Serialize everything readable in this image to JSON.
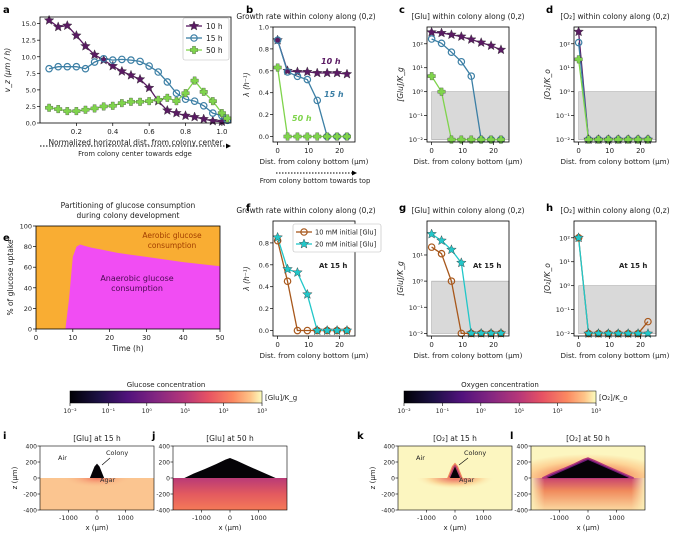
{
  "panel_labels": [
    "a",
    "b",
    "c",
    "d",
    "e",
    "f",
    "g",
    "h",
    "i",
    "j",
    "k",
    "l"
  ],
  "colors": {
    "h10": "#5a1a63",
    "h15": "#3c7fa5",
    "h50": "#7fd44c",
    "mm10": "#a8581c",
    "mm20": "#22c7c9",
    "shade": "#d9d9d9",
    "anaerobic": "#f14df3",
    "aerobic": "#f9ad33"
  },
  "chart_data": [
    {
      "id": "a",
      "type": "line",
      "xlabel": "Normalized horizontal dist. from colony center",
      "ylabel": "v_z (μm / h)",
      "arrow_caption": "From colony center towards edge",
      "xlim": [
        0,
        1.05
      ],
      "ylim": [
        0,
        16
      ],
      "xticks": [
        "0.2",
        "0.4",
        "0.6",
        "0.8",
        "1.0"
      ],
      "yticks": [
        "0.0",
        "2.5",
        "5.0",
        "7.5",
        "10.0",
        "12.5",
        "15.0"
      ],
      "legend": [
        "10 h",
        "15 h",
        "50 h"
      ],
      "legend_position": "top-right",
      "series": [
        {
          "name": "10 h",
          "color": "h10",
          "marker": "star",
          "x": [
            0.05,
            0.1,
            0.15,
            0.2,
            0.25,
            0.3,
            0.35,
            0.4,
            0.45,
            0.5,
            0.55,
            0.6,
            0.65,
            0.7,
            0.75,
            0.8,
            0.85,
            0.9,
            0.95,
            1.0
          ],
          "y": [
            15.5,
            14.5,
            14.7,
            13.2,
            11.6,
            10.3,
            9.5,
            8.6,
            7.8,
            7.2,
            6.6,
            5.3,
            3.3,
            1.9,
            1.5,
            1.1,
            0.9,
            0.6,
            0.3,
            0.2
          ]
        },
        {
          "name": "15 h",
          "color": "h15",
          "marker": "circle",
          "x": [
            0.05,
            0.1,
            0.15,
            0.2,
            0.25,
            0.3,
            0.35,
            0.4,
            0.45,
            0.5,
            0.55,
            0.6,
            0.65,
            0.7,
            0.75,
            0.8,
            0.85,
            0.9,
            0.95,
            1.0,
            1.03
          ],
          "y": [
            8.2,
            8.5,
            8.5,
            8.5,
            8.2,
            9.2,
            9.7,
            9.5,
            9.6,
            9.5,
            9.3,
            8.6,
            7.7,
            6.2,
            4.5,
            3.6,
            3.3,
            2.6,
            1.5,
            1.1,
            0.4
          ]
        },
        {
          "name": "50 h",
          "color": "h50",
          "marker": "plus",
          "x": [
            0.05,
            0.1,
            0.15,
            0.2,
            0.25,
            0.3,
            0.35,
            0.4,
            0.45,
            0.5,
            0.55,
            0.6,
            0.65,
            0.7,
            0.75,
            0.8,
            0.85,
            0.9,
            0.95,
            1.0,
            1.03
          ],
          "y": [
            2.3,
            2.1,
            1.8,
            1.8,
            2.0,
            2.2,
            2.5,
            2.6,
            3.0,
            3.2,
            3.2,
            3.3,
            3.5,
            3.8,
            3.3,
            4.5,
            6.4,
            4.7,
            3.3,
            1.5,
            0.7
          ]
        }
      ]
    },
    {
      "id": "b",
      "type": "line",
      "title": "Growth rate within colony along (0,z)",
      "xlabel": "Dist. from colony bottom (μm)",
      "ylabel": "λ (h⁻¹)",
      "arrow_caption": "From colony bottom towards top",
      "xlim": [
        -1.5,
        25
      ],
      "ylim": [
        -0.05,
        1.0
      ],
      "xticks": [
        "0",
        "10",
        "20"
      ],
      "yticks": [
        "0.0",
        "0.2",
        "0.4",
        "0.6",
        "0.8",
        "1.0"
      ],
      "annotations": [
        "10 h",
        "15 h",
        "50 h"
      ],
      "series": [
        {
          "name": "10 h",
          "color": "h10",
          "marker": "star",
          "x": [
            0,
            3.2,
            6.4,
            9.6,
            12.8,
            16,
            19.2,
            22.4
          ],
          "y": [
            0.88,
            0.6,
            0.59,
            0.59,
            0.58,
            0.58,
            0.58,
            0.57
          ]
        },
        {
          "name": "15 h",
          "color": "h15",
          "marker": "circle",
          "x": [
            0,
            3.2,
            6.4,
            9.6,
            12.8,
            16,
            19.2,
            22.4
          ],
          "y": [
            0.88,
            0.59,
            0.55,
            0.52,
            0.33,
            0.0,
            0.0,
            0.0
          ]
        },
        {
          "name": "50 h",
          "color": "h50",
          "marker": "plus",
          "x": [
            0,
            3.2,
            6.4,
            9.6,
            12.8,
            16,
            19.2,
            22.4
          ],
          "y": [
            0.63,
            0.0,
            0.0,
            0.0,
            0.0,
            0.0,
            0.0,
            0.0
          ]
        }
      ]
    },
    {
      "id": "c",
      "type": "line",
      "scale": "log",
      "title": "[Glu] within colony along (0,z)",
      "xlabel": "Dist. from colony bottom (μm)",
      "ylabel": "[Glu]/K_g",
      "xlim": [
        -1.5,
        25
      ],
      "ylim": [
        -2.1,
        2.7
      ],
      "xticks": [
        "0",
        "10",
        "20"
      ],
      "yticks": [
        "10⁻²",
        "10⁻¹",
        "10⁰",
        "10¹",
        "10²"
      ],
      "shade": {
        "x": [
          0,
          25
        ],
        "y": [
          -2,
          0
        ]
      },
      "series": [
        {
          "name": "10 h",
          "color": "h10",
          "marker": "star",
          "x": [
            0,
            3.2,
            6.4,
            9.6,
            12.8,
            16,
            19.2,
            22.4
          ],
          "y": [
            2.48,
            2.45,
            2.38,
            2.3,
            2.18,
            2.05,
            1.92,
            1.75
          ]
        },
        {
          "name": "15 h",
          "color": "h15",
          "marker": "circle",
          "x": [
            0,
            3.2,
            6.4,
            9.6,
            12.8,
            16,
            19.2,
            22.4
          ],
          "y": [
            2.2,
            2.02,
            1.65,
            1.25,
            0.65,
            -2.0,
            -2.0,
            -2.0
          ]
        },
        {
          "name": "50 h",
          "color": "h50",
          "marker": "plus",
          "x": [
            0,
            3.2,
            6.4,
            9.6,
            12.8,
            16,
            19.2,
            22.4
          ],
          "y": [
            0.65,
            0.0,
            -2.0,
            -2.0,
            -2.0,
            -2.0,
            -2.0,
            -2.0
          ]
        }
      ]
    },
    {
      "id": "d",
      "type": "line",
      "scale": "log",
      "title": "[O₂] within colony along (0,z)",
      "xlabel": "Dist. from colony bottom (μm)",
      "ylabel": "[O₂]/K_o",
      "xlim": [
        -1.5,
        25
      ],
      "ylim": [
        -2.1,
        2.7
      ],
      "xticks": [
        "0",
        "10",
        "20"
      ],
      "yticks": [
        "10⁻²",
        "10⁻¹",
        "10⁰",
        "10¹",
        "10²"
      ],
      "shade": {
        "x": [
          0,
          25
        ],
        "y": [
          -2,
          0
        ]
      },
      "series": [
        {
          "name": "10 h",
          "color": "h10",
          "marker": "star",
          "x": [
            0,
            3.2,
            6.4,
            9.6,
            12.8,
            16,
            19.2,
            22.4
          ],
          "y": [
            2.5,
            -2.0,
            -2.0,
            -2.0,
            -2.0,
            -2.0,
            -2.0,
            -2.0
          ]
        },
        {
          "name": "15 h",
          "color": "h15",
          "marker": "circle",
          "x": [
            0,
            3.2,
            6.4,
            9.6,
            12.8,
            16,
            19.2,
            22.4
          ],
          "y": [
            2.05,
            -2.0,
            -2.0,
            -2.0,
            -2.0,
            -2.0,
            -2.0,
            -2.0
          ]
        },
        {
          "name": "50 h",
          "color": "h50",
          "marker": "plus",
          "x": [
            0,
            3.2,
            6.4,
            9.6,
            12.8,
            16,
            19.2,
            22.4
          ],
          "y": [
            1.35,
            -2.0,
            -2.0,
            -2.0,
            -2.0,
            -2.0,
            -2.0,
            -2.0
          ]
        }
      ]
    },
    {
      "id": "e",
      "type": "area",
      "title": "Partitioning of glucose consumption during colony development",
      "xlabel": "Time (h)",
      "ylabel": "% of glucose uptake",
      "xlim": [
        0,
        50
      ],
      "ylim": [
        0,
        100
      ],
      "xticks": [
        "0",
        "10",
        "20",
        "30",
        "40",
        "50"
      ],
      "yticks": [
        "0",
        "20",
        "40",
        "60",
        "80",
        "100"
      ],
      "region_labels": [
        "Aerobic glucose consumption",
        "Anaerobic glucose consumption"
      ],
      "anaerobic_fraction": {
        "x": [
          8,
          9,
          10,
          11,
          12,
          13,
          15,
          18,
          22,
          30,
          40,
          50
        ],
        "y": [
          0,
          30,
          70,
          80,
          82,
          81,
          79,
          77,
          74,
          70,
          65,
          61
        ]
      }
    },
    {
      "id": "f",
      "type": "line",
      "title": "Growth rate within colony along (0,z)",
      "xlabel": "Dist. from colony bottom (μm)",
      "ylabel": "λ (h⁻¹)",
      "xlim": [
        -1.5,
        25
      ],
      "ylim": [
        -0.05,
        1.0
      ],
      "xticks": [
        "0",
        "10",
        "20"
      ],
      "yticks": [
        "0.0",
        "0.2",
        "0.4",
        "0.6",
        "0.8"
      ],
      "legend": [
        "10 mM initial [Glu]",
        "20 mM initial [Glu]"
      ],
      "legend_position": "top-right",
      "annotation": "At 15 h",
      "series": [
        {
          "name": "10 mM initial [Glu]",
          "color": "mm10",
          "marker": "circle",
          "x": [
            0,
            3.2,
            6.4,
            9.6,
            12.8,
            16,
            19.2,
            22.4
          ],
          "y": [
            0.82,
            0.45,
            0.0,
            0.0,
            0.0,
            0.0,
            0.0,
            0.0
          ]
        },
        {
          "name": "20 mM initial [Glu]",
          "color": "mm20",
          "marker": "star",
          "x": [
            0,
            3.2,
            6.4,
            9.6,
            12.8,
            16,
            19.2,
            22.4
          ],
          "y": [
            0.85,
            0.56,
            0.53,
            0.33,
            0.0,
            0.0,
            0.0,
            0.0
          ]
        }
      ]
    },
    {
      "id": "g",
      "type": "line",
      "scale": "log",
      "title": "[Glu] within colony along (0,z)",
      "xlabel": "Dist. from colony bottom (μm)",
      "ylabel": "[Glu]/K_g",
      "xlim": [
        -1.5,
        25
      ],
      "ylim": [
        -2.1,
        2.3
      ],
      "xticks": [
        "0",
        "10",
        "20"
      ],
      "yticks": [
        "10⁻²",
        "10⁻¹",
        "10⁰",
        "10¹"
      ],
      "shade": {
        "x": [
          0,
          25
        ],
        "y": [
          -2,
          0
        ]
      },
      "annotation": "At 15 h",
      "series": [
        {
          "name": "10 mM initial [Glu]",
          "color": "mm10",
          "marker": "circle",
          "x": [
            0,
            3.2,
            6.4,
            9.6,
            12.8,
            16,
            19.2,
            22.4
          ],
          "y": [
            1.3,
            1.05,
            0.0,
            -2.0,
            -2.0,
            -2.0,
            -2.0,
            -2.0
          ]
        },
        {
          "name": "20 mM initial [Glu]",
          "color": "mm20",
          "marker": "star",
          "x": [
            0,
            3.2,
            6.4,
            9.6,
            12.8,
            16,
            19.2,
            22.4
          ],
          "y": [
            1.8,
            1.55,
            1.2,
            0.7,
            -2.0,
            -2.0,
            -2.0,
            -2.0
          ]
        }
      ]
    },
    {
      "id": "h",
      "type": "line",
      "scale": "log",
      "title": "[O₂] within colony along (0,z)",
      "xlabel": "Dist. from colony bottom (μm)",
      "ylabel": "[O₂]/K_o",
      "xlim": [
        -1.5,
        25
      ],
      "ylim": [
        -2.1,
        2.7
      ],
      "xticks": [
        "0",
        "10",
        "20"
      ],
      "yticks": [
        "10⁻²",
        "10⁻¹",
        "10⁰",
        "10¹",
        "10²"
      ],
      "shade": {
        "x": [
          0,
          25
        ],
        "y": [
          -2,
          0
        ]
      },
      "annotation": "At 15 h",
      "series": [
        {
          "name": "10 mM initial [Glu]",
          "color": "mm10",
          "marker": "circle",
          "x": [
            0,
            3.2,
            6.4,
            9.6,
            12.8,
            16,
            19.2,
            22.4
          ],
          "y": [
            2.0,
            -2.0,
            -2.0,
            -2.0,
            -2.0,
            -2.0,
            -2.0,
            -1.5
          ]
        },
        {
          "name": "20 mM initial [Glu]",
          "color": "mm20",
          "marker": "star",
          "x": [
            0,
            3.2,
            6.4,
            9.6,
            12.8,
            16,
            19.2,
            22.4
          ],
          "y": [
            2.0,
            -2.0,
            -2.0,
            -2.0,
            -2.0,
            -2.0,
            -2.0,
            -2.0
          ]
        }
      ]
    },
    {
      "id": "i",
      "type": "heatmap",
      "title": "[Glu] at 15 h",
      "xlabel": "x (μm)",
      "ylabel": "z (μm)",
      "xlim": [
        -2000,
        2000
      ],
      "ylim": [
        -400,
        400
      ],
      "xticks": [
        "-1000",
        "0",
        "1000"
      ],
      "yticks": [
        "-400",
        "-200",
        "0",
        "200",
        "400"
      ],
      "labels": [
        "Air",
        "Colony",
        "Agar"
      ],
      "colony_width_um": 500,
      "colony_height_um": 180
    },
    {
      "id": "j",
      "type": "heatmap",
      "title": "[Glu] at 50 h",
      "xlabel": "x (μm)",
      "xlim": [
        -2000,
        2000
      ],
      "ylim": [
        -400,
        400
      ],
      "xticks": [
        "-1000",
        "0",
        "1000"
      ],
      "yticks": [
        "-400",
        "-200",
        "0",
        "200",
        "400"
      ],
      "colony_width_um": 3200,
      "colony_height_um": 250
    },
    {
      "id": "k",
      "type": "heatmap",
      "title": "[O₂] at 15 h",
      "xlabel": "x (μm)",
      "ylabel": "z (μm)",
      "xlim": [
        -2000,
        2000
      ],
      "ylim": [
        -400,
        400
      ],
      "xticks": [
        "-1000",
        "0",
        "1000"
      ],
      "yticks": [
        "-400",
        "-200",
        "0",
        "200",
        "400"
      ],
      "labels": [
        "Air",
        "Colony",
        "Agar"
      ],
      "colony_width_um": 500,
      "colony_height_um": 180
    },
    {
      "id": "l",
      "type": "heatmap",
      "title": "[O₂] at 50 h",
      "xlabel": "x (μm)",
      "xlim": [
        -2000,
        2000
      ],
      "ylim": [
        -400,
        400
      ],
      "xticks": [
        "-1000",
        "0",
        "1000"
      ],
      "yticks": [
        "-400",
        "-200",
        "0",
        "200",
        "400"
      ],
      "colony_width_um": 3200,
      "colony_height_um": 250
    }
  ],
  "colorbars": [
    {
      "id": "glu",
      "title": "Glucose concentration",
      "unit": "[Glu]/K_g",
      "ticks": [
        "10⁻²",
        "10⁻¹",
        "10⁰",
        "10¹",
        "10²",
        "10³"
      ]
    },
    {
      "id": "o2",
      "title": "Oxygen concentration",
      "unit": "[O₂]/K_o",
      "ticks": [
        "10⁻²",
        "10⁻¹",
        "10⁰",
        "10¹",
        "10²",
        "10³"
      ]
    }
  ]
}
